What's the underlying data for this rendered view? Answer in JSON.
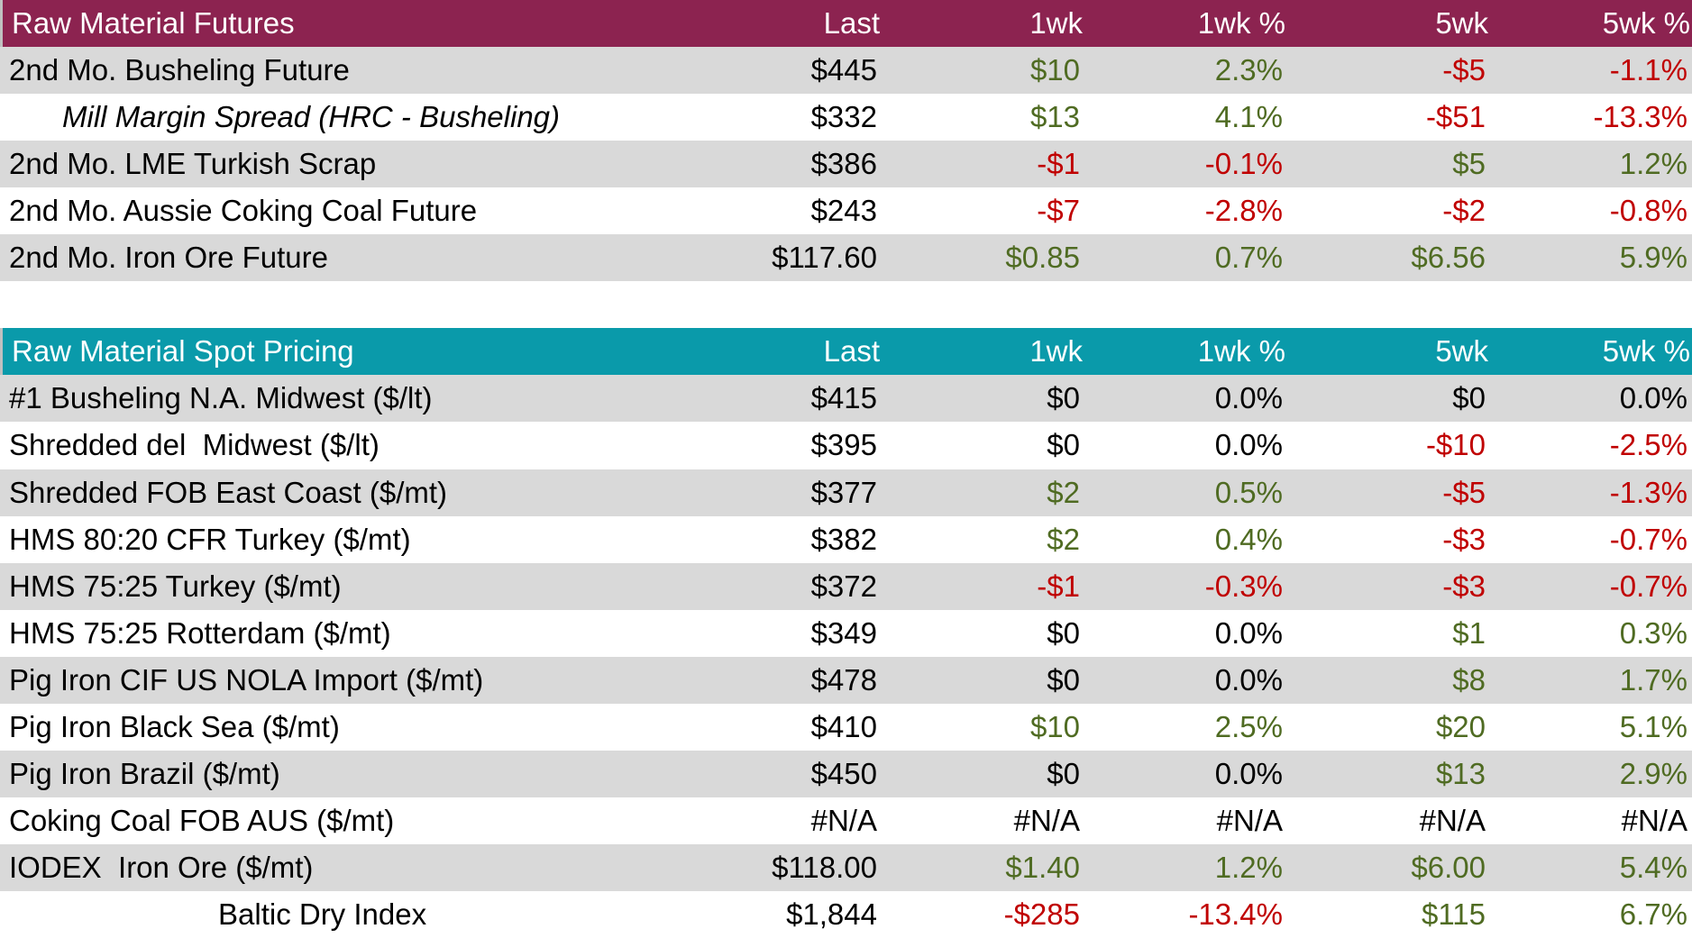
{
  "sections": [
    {
      "header": [
        "Raw Material Futures",
        "Last",
        "1wk",
        "1wk %",
        "5wk",
        "5wk %"
      ],
      "rows": [
        {
          "cells": [
            "2nd Mo. Busheling Future",
            "$445",
            "$10",
            "2.3%",
            "-$5",
            "-1.1%"
          ],
          "tones": [
            "neutral",
            "neutral",
            "green",
            "green",
            "red",
            "red"
          ]
        },
        {
          "cells": [
            "Mill Margin Spread (HRC - Busheling)",
            "$332",
            "$13",
            "4.1%",
            "-$51",
            "-13.3%"
          ],
          "tones": [
            "neutral",
            "neutral",
            "green",
            "green",
            "red",
            "red"
          ],
          "style": "italic-indent"
        },
        {
          "cells": [
            "2nd Mo. LME Turkish Scrap",
            "$386",
            "-$1",
            "-0.1%",
            "$5",
            "1.2%"
          ],
          "tones": [
            "neutral",
            "neutral",
            "red",
            "red",
            "green",
            "green"
          ]
        },
        {
          "cells": [
            "2nd Mo. Aussie Coking Coal Future",
            "$243",
            "-$7",
            "-2.8%",
            "-$2",
            "-0.8%"
          ],
          "tones": [
            "neutral",
            "neutral",
            "red",
            "red",
            "red",
            "red"
          ]
        },
        {
          "cells": [
            "2nd Mo. Iron Ore Future",
            "$117.60",
            "$0.85",
            "0.7%",
            "$6.56",
            "5.9%"
          ],
          "tones": [
            "neutral",
            "neutral",
            "green",
            "green",
            "green",
            "green"
          ]
        }
      ]
    },
    {
      "header": [
        "Raw Material Spot Pricing",
        "Last",
        "1wk",
        "1wk %",
        "5wk",
        "5wk %"
      ],
      "rows": [
        {
          "cells": [
            "#1 Busheling N.A. Midwest ($/lt)",
            "$415",
            "$0",
            "0.0%",
            "$0",
            "0.0%"
          ],
          "tones": [
            "neutral",
            "neutral",
            "neutral",
            "neutral",
            "neutral",
            "neutral"
          ]
        },
        {
          "cells": [
            "Shredded del  Midwest ($/lt)",
            "$395",
            "$0",
            "0.0%",
            "-$10",
            "-2.5%"
          ],
          "tones": [
            "neutral",
            "neutral",
            "neutral",
            "neutral",
            "red",
            "red"
          ]
        },
        {
          "cells": [
            "Shredded FOB East Coast ($/mt)",
            "$377",
            "$2",
            "0.5%",
            "-$5",
            "-1.3%"
          ],
          "tones": [
            "neutral",
            "neutral",
            "green",
            "green",
            "red",
            "red"
          ]
        },
        {
          "cells": [
            "HMS 80:20 CFR Turkey ($/mt)",
            "$382",
            "$2",
            "0.4%",
            "-$3",
            "-0.7%"
          ],
          "tones": [
            "neutral",
            "neutral",
            "green",
            "green",
            "red",
            "red"
          ]
        },
        {
          "cells": [
            "HMS 75:25 Turkey ($/mt)",
            "$372",
            "-$1",
            "-0.3%",
            "-$3",
            "-0.7%"
          ],
          "tones": [
            "neutral",
            "neutral",
            "red",
            "red",
            "red",
            "red"
          ]
        },
        {
          "cells": [
            "HMS 75:25 Rotterdam ($/mt)",
            "$349",
            "$0",
            "0.0%",
            "$1",
            "0.3%"
          ],
          "tones": [
            "neutral",
            "neutral",
            "neutral",
            "neutral",
            "green",
            "green"
          ]
        },
        {
          "cells": [
            "Pig Iron CIF US NOLA Import ($/mt)",
            "$478",
            "$0",
            "0.0%",
            "$8",
            "1.7%"
          ],
          "tones": [
            "neutral",
            "neutral",
            "neutral",
            "neutral",
            "green",
            "green"
          ]
        },
        {
          "cells": [
            "Pig Iron Black Sea ($/mt)",
            "$410",
            "$10",
            "2.5%",
            "$20",
            "5.1%"
          ],
          "tones": [
            "neutral",
            "neutral",
            "green",
            "green",
            "green",
            "green"
          ]
        },
        {
          "cells": [
            "Pig Iron Brazil ($/mt)",
            "$450",
            "$0",
            "0.0%",
            "$13",
            "2.9%"
          ],
          "tones": [
            "neutral",
            "neutral",
            "neutral",
            "neutral",
            "green",
            "green"
          ]
        },
        {
          "cells": [
            "Coking Coal FOB AUS ($/mt)",
            "#N/A",
            "#N/A",
            "#N/A",
            "#N/A",
            "#N/A"
          ],
          "tones": [
            "neutral",
            "neutral",
            "neutral",
            "neutral",
            "neutral",
            "neutral"
          ]
        },
        {
          "cells": [
            "IODEX  Iron Ore ($/mt)",
            "$118.00",
            "$1.40",
            "1.2%",
            "$6.00",
            "5.4%"
          ],
          "tones": [
            "neutral",
            "neutral",
            "green",
            "green",
            "green",
            "green"
          ]
        },
        {
          "cells": [
            "Baltic Dry Index",
            "$1,844",
            "-$285",
            "-13.4%",
            "$115",
            "6.7%"
          ],
          "tones": [
            "neutral",
            "neutral",
            "red",
            "red",
            "green",
            "green"
          ],
          "style": "indent"
        }
      ]
    }
  ]
}
